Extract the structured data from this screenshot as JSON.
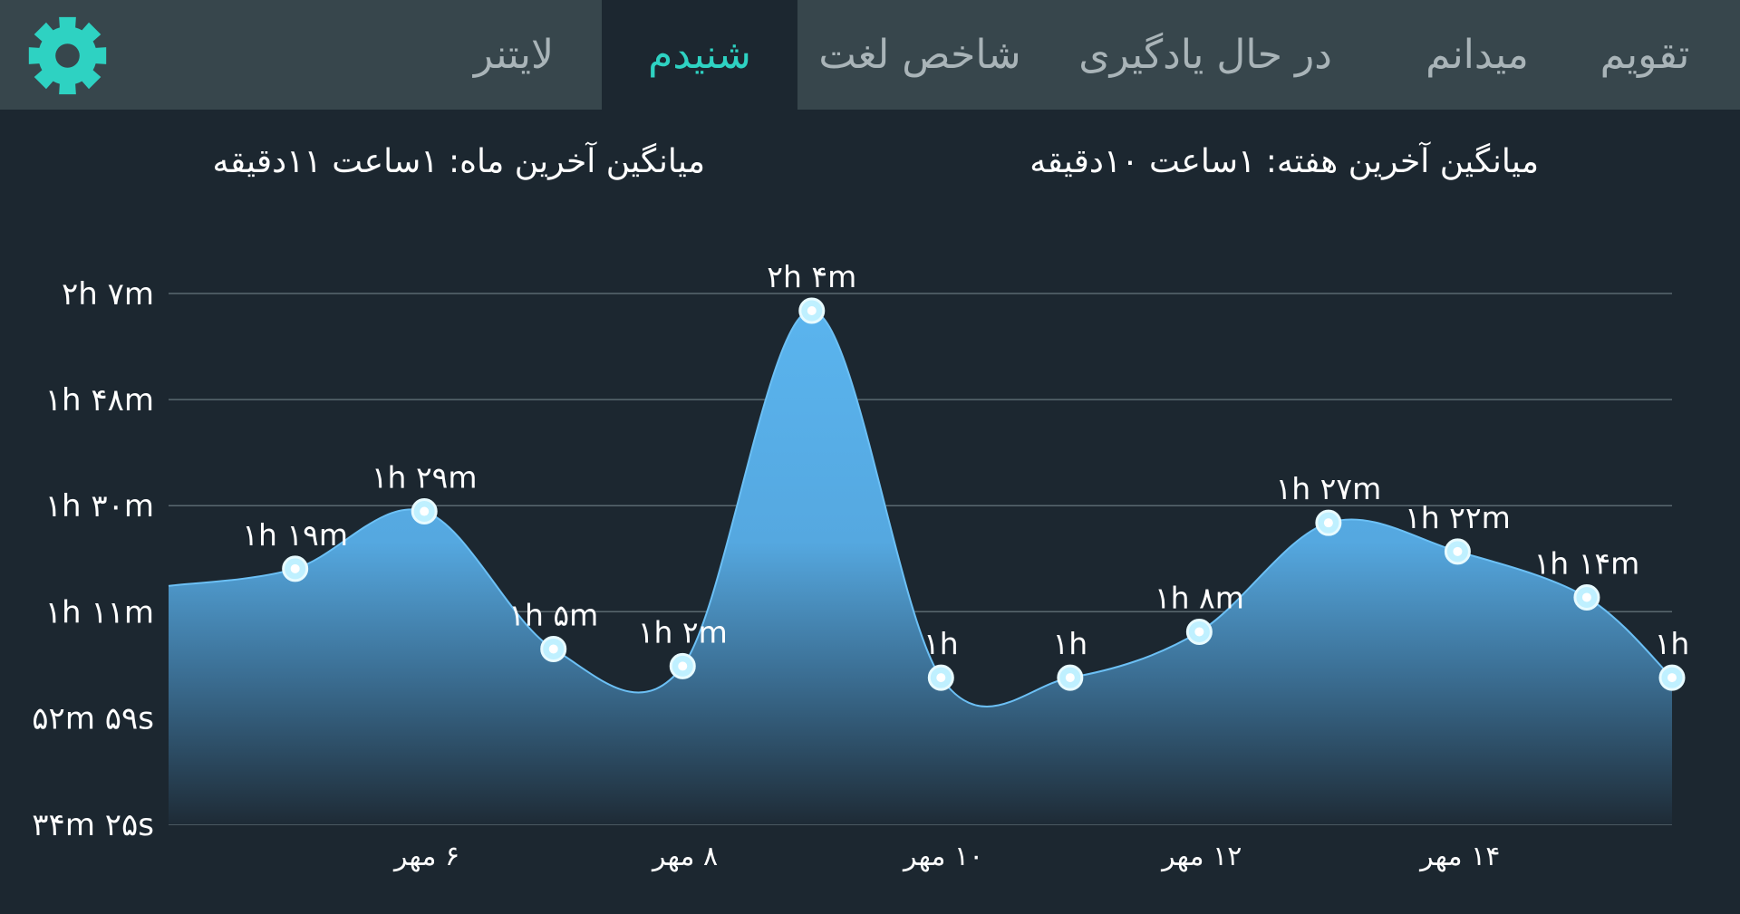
{
  "tabs": [
    {
      "label": "تقویم",
      "active": false
    },
    {
      "label": "میدانم",
      "active": false
    },
    {
      "label": "در حال یادگیری",
      "active": false
    },
    {
      "label": "شاخص لغت",
      "active": false
    },
    {
      "label": "شنیدم",
      "active": true
    },
    {
      "label": "لایتنر",
      "active": false
    }
  ],
  "settings_icon": "gear-icon",
  "summary": {
    "week_average": "میانگین آخرین هفته: ۱ساعت  ۱۰دقیقه",
    "month_average": "میانگین آخرین ماه: ۱ساعت  ۱۱دقیقه"
  },
  "colors": {
    "accent": "#2ed2c2",
    "area_top": "#5ab4ee",
    "area_bottom": "#1e2b36",
    "tab_bar": "#37464c",
    "background": "#1c2730"
  },
  "chart_data": {
    "type": "area",
    "y_ticks": [
      {
        "value": 34.42,
        "label": "۳۴m ۲۵s"
      },
      {
        "value": 52.98,
        "label": "۵۲m ۵۹s"
      },
      {
        "value": 71.5,
        "label": "۱h ۱۱m"
      },
      {
        "value": 90,
        "label": "۱h ۳۰m"
      },
      {
        "value": 108.5,
        "label": "۱h ۴۸m"
      },
      {
        "value": 127,
        "label": "۲h ۷m"
      }
    ],
    "x_ticks": [
      {
        "x": 6,
        "label": "۶ مهر"
      },
      {
        "x": 8,
        "label": "۸ مهر"
      },
      {
        "x": 10,
        "label": "۱۰ مهر"
      },
      {
        "x": 12,
        "label": "۱۲ مهر"
      },
      {
        "x": 14,
        "label": "۱۴ مهر"
      }
    ],
    "xlim": [
      4.0,
      15.64
    ],
    "ylim": [
      34.42,
      127
    ],
    "grid": true,
    "start_value": 76,
    "points": [
      {
        "x": 4.98,
        "y": 79,
        "label": "۱h ۱۹m"
      },
      {
        "x": 5.98,
        "y": 89,
        "label": "۱h ۲۹m"
      },
      {
        "x": 6.98,
        "y": 65,
        "label": "۱h ۵m"
      },
      {
        "x": 7.98,
        "y": 62,
        "label": "۱h ۲m"
      },
      {
        "x": 8.98,
        "y": 124,
        "label": "۲h ۴m"
      },
      {
        "x": 9.98,
        "y": 60,
        "label": "۱h"
      },
      {
        "x": 10.98,
        "y": 60,
        "label": "۱h"
      },
      {
        "x": 11.98,
        "y": 68,
        "label": "۱h ۸m"
      },
      {
        "x": 12.98,
        "y": 87,
        "label": "۱h ۲۷m"
      },
      {
        "x": 13.98,
        "y": 82,
        "label": "۱h ۲۲m"
      },
      {
        "x": 14.98,
        "y": 74,
        "label": "۱h ۱۴m"
      },
      {
        "x": 15.64,
        "y": 60,
        "label": "۱h"
      }
    ]
  }
}
